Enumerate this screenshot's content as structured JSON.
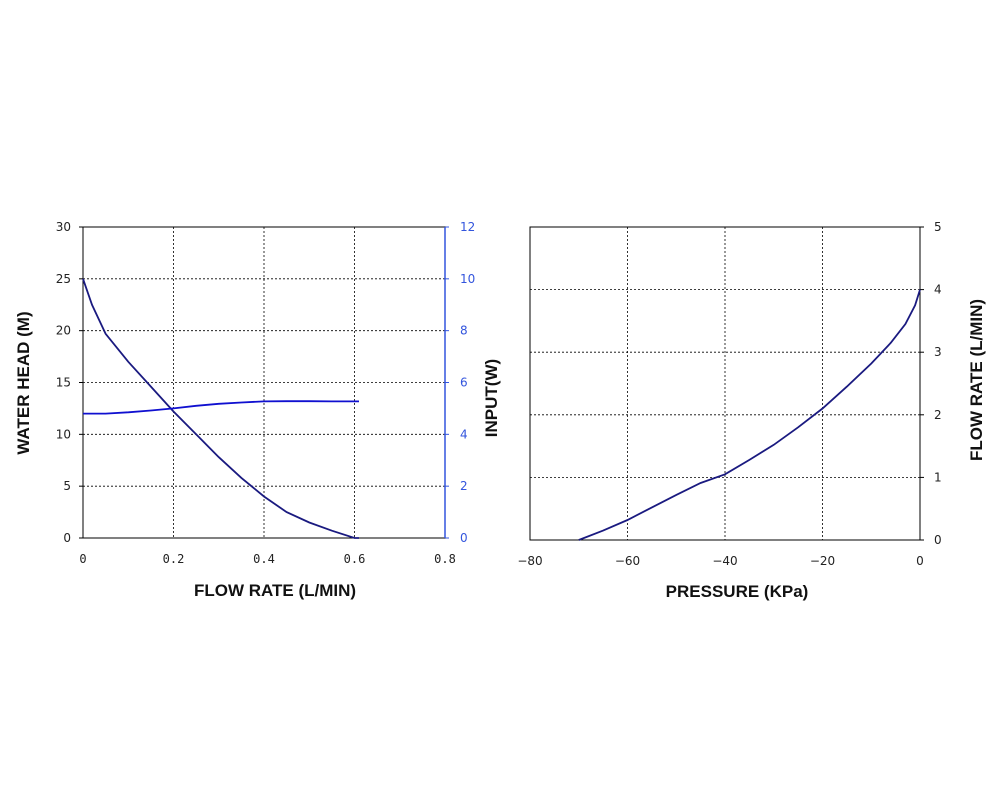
{
  "chart_data": [
    {
      "type": "line",
      "xlabel": "FLOW RATE (L/MIN)",
      "ylabel": "WATER HEAD (M)",
      "y2label": "INPUT(W)",
      "xlim": [
        0,
        0.8
      ],
      "ylim": [
        0,
        30
      ],
      "y2lim": [
        0,
        12
      ],
      "x_ticks": [
        "0",
        "0.2",
        "0.4",
        "0.6",
        "0.8"
      ],
      "y_ticks": [
        "0",
        "5",
        "10",
        "15",
        "20",
        "25",
        "30"
      ],
      "y2_ticks": [
        "0",
        "2",
        "4",
        "6",
        "8",
        "10",
        "12"
      ],
      "grid": true,
      "series": [
        {
          "axis": "left",
          "color": "#1a1a80",
          "x": [
            0,
            0.02,
            0.05,
            0.1,
            0.15,
            0.2,
            0.25,
            0.3,
            0.35,
            0.4,
            0.45,
            0.5,
            0.55,
            0.6,
            0.61
          ],
          "y": [
            25,
            22.5,
            19.7,
            17,
            14.6,
            12.2,
            10.0,
            7.8,
            5.8,
            4.0,
            2.5,
            1.5,
            0.7,
            0.0,
            0.0
          ]
        },
        {
          "axis": "right",
          "color": "#1010d0",
          "x": [
            0,
            0.05,
            0.1,
            0.15,
            0.2,
            0.25,
            0.3,
            0.35,
            0.4,
            0.45,
            0.5,
            0.55,
            0.61
          ],
          "y": [
            4.8,
            4.8,
            4.85,
            4.92,
            5.0,
            5.1,
            5.18,
            5.23,
            5.27,
            5.28,
            5.28,
            5.27,
            5.27
          ]
        }
      ]
    },
    {
      "type": "line",
      "xlabel": "PRESSURE (KPa)",
      "ylabel": "FLOW RATE (L/MIN)",
      "xlim": [
        -80,
        0
      ],
      "ylim": [
        0,
        5
      ],
      "x_ticks": [
        "−80",
        "−60",
        "−40",
        "−20",
        "0"
      ],
      "y_ticks": [
        "0",
        "1",
        "2",
        "3",
        "4",
        "5"
      ],
      "grid": true,
      "series": [
        {
          "color": "#1a1a80",
          "x": [
            -70,
            -65,
            -60,
            -55,
            -50,
            -45,
            -40,
            -35,
            -30,
            -25,
            -20,
            -15,
            -10,
            -6,
            -3,
            -1,
            0
          ],
          "y": [
            0,
            0.15,
            0.32,
            0.52,
            0.72,
            0.91,
            1.05,
            1.28,
            1.52,
            1.8,
            2.1,
            2.45,
            2.82,
            3.15,
            3.45,
            3.75,
            4.0
          ]
        }
      ]
    }
  ]
}
